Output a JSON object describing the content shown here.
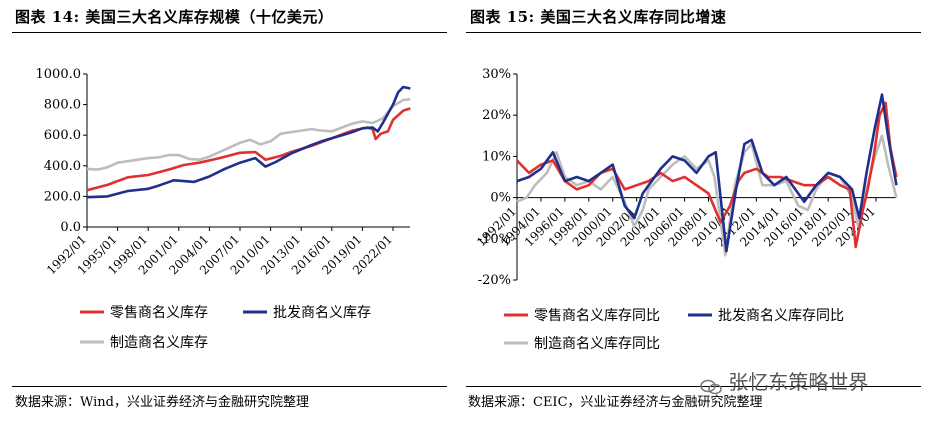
{
  "left_title": "图表 14:  美国三大名义库存规模（十亿美元）",
  "right_title": "图表 15:  美国三大名义库存同比增速",
  "left_source": "数据来源：Wind，兴业证券经济与金融研究院整理",
  "right_source": "数据来源：CEIC，兴业证券经济与金融研究院整理",
  "watermark_text": "张忆东策略世界",
  "watermark_icon": "wechat-icon",
  "chart_data": [
    {
      "type": "line",
      "title": "美国三大名义库存规模（十亿美元）",
      "x_ticks": [
        "1992/01",
        "1995/01",
        "1998/01",
        "2001/01",
        "2004/01",
        "2007/01",
        "2010/01",
        "2013/01",
        "2016/01",
        "2019/01",
        "2022/01"
      ],
      "xlim": [
        "1992/01",
        "2023/09"
      ],
      "y_ticks": [
        "0.0",
        "200.0",
        "400.0",
        "600.0",
        "800.0",
        "1000.0"
      ],
      "ylim": [
        0,
        1000
      ],
      "grid": false,
      "legend_position": "bottom",
      "series": [
        {
          "name": "零售商名义库存",
          "color": "#e03030",
          "points": [
            [
              1992.0,
              240
            ],
            [
              1994.0,
              275
            ],
            [
              1996.0,
              325
            ],
            [
              1998.0,
              340
            ],
            [
              2000.0,
              375
            ],
            [
              2001.5,
              405
            ],
            [
              2003.0,
              420
            ],
            [
              2005.0,
              450
            ],
            [
              2007.0,
              485
            ],
            [
              2008.5,
              490
            ],
            [
              2009.5,
              440
            ],
            [
              2011.0,
              465
            ],
            [
              2012.0,
              490
            ],
            [
              2014.0,
              530
            ],
            [
              2016.0,
              580
            ],
            [
              2018.0,
              630
            ],
            [
              2019.5,
              650
            ],
            [
              2020.0,
              640
            ],
            [
              2020.3,
              575
            ],
            [
              2020.8,
              610
            ],
            [
              2021.5,
              625
            ],
            [
              2022.0,
              700
            ],
            [
              2023.0,
              760
            ],
            [
              2023.7,
              775
            ]
          ]
        },
        {
          "name": "批发商名义库存",
          "color": "#1f2f8c",
          "points": [
            [
              1992.0,
              195
            ],
            [
              1994.0,
              200
            ],
            [
              1996.0,
              235
            ],
            [
              1998.0,
              250
            ],
            [
              1999.0,
              270
            ],
            [
              2000.5,
              305
            ],
            [
              2001.5,
              300
            ],
            [
              2002.5,
              295
            ],
            [
              2004.0,
              330
            ],
            [
              2005.5,
              380
            ],
            [
              2007.0,
              420
            ],
            [
              2008.5,
              450
            ],
            [
              2009.5,
              395
            ],
            [
              2010.5,
              425
            ],
            [
              2012.0,
              480
            ],
            [
              2014.0,
              535
            ],
            [
              2015.0,
              560
            ],
            [
              2016.0,
              580
            ],
            [
              2017.0,
              600
            ],
            [
              2018.0,
              620
            ],
            [
              2019.0,
              645
            ],
            [
              2020.0,
              650
            ],
            [
              2020.5,
              625
            ],
            [
              2021.0,
              680
            ],
            [
              2022.0,
              800
            ],
            [
              2022.5,
              880
            ],
            [
              2023.0,
              915
            ],
            [
              2023.7,
              905
            ]
          ]
        },
        {
          "name": "制造商名义库存",
          "color": "#bdbdbd",
          "points": [
            [
              1992.0,
              380
            ],
            [
              1993.0,
              375
            ],
            [
              1994.0,
              390
            ],
            [
              1995.0,
              420
            ],
            [
              1997.0,
              440
            ],
            [
              1998.0,
              450
            ],
            [
              1999.0,
              455
            ],
            [
              2000.0,
              470
            ],
            [
              2001.0,
              470
            ],
            [
              2002.0,
              445
            ],
            [
              2003.0,
              440
            ],
            [
              2004.0,
              460
            ],
            [
              2005.0,
              490
            ],
            [
              2006.0,
              520
            ],
            [
              2007.0,
              550
            ],
            [
              2008.0,
              570
            ],
            [
              2009.0,
              540
            ],
            [
              2010.0,
              560
            ],
            [
              2011.0,
              610
            ],
            [
              2012.0,
              620
            ],
            [
              2014.0,
              640
            ],
            [
              2015.0,
              630
            ],
            [
              2016.0,
              625
            ],
            [
              2017.0,
              650
            ],
            [
              2018.0,
              675
            ],
            [
              2019.0,
              690
            ],
            [
              2020.0,
              680
            ],
            [
              2021.0,
              710
            ],
            [
              2022.0,
              790
            ],
            [
              2023.0,
              830
            ],
            [
              2023.7,
              835
            ]
          ]
        }
      ]
    },
    {
      "type": "line",
      "title": "美国三大名义库存同比增速",
      "x_ticks": [
        "1992/01",
        "1994/01",
        "1996/01",
        "1998/01",
        "2000/01",
        "2002/01",
        "2004/01",
        "2006/01",
        "2008/01",
        "2010/01",
        "2012/01",
        "2014/01",
        "2016/01",
        "2018/01",
        "2020/01",
        "2022/01"
      ],
      "xlim": [
        "1992/01",
        "2023/09"
      ],
      "y_ticks": [
        "-20%",
        "-10%",
        "0%",
        "10%",
        "20%",
        "30%"
      ],
      "ylim": [
        -20,
        30
      ],
      "grid": false,
      "legend_position": "bottom",
      "series": [
        {
          "name": "零售商名义库存同比",
          "color": "#e03030",
          "points": [
            [
              1992.0,
              9
            ],
            [
              1993.0,
              6
            ],
            [
              1994.0,
              8
            ],
            [
              1995.0,
              9
            ],
            [
              1996.0,
              4
            ],
            [
              1997.0,
              2
            ],
            [
              1998.0,
              3
            ],
            [
              1999.0,
              6
            ],
            [
              2000.0,
              7
            ],
            [
              2001.0,
              2
            ],
            [
              2002.0,
              3
            ],
            [
              2003.0,
              4
            ],
            [
              2004.0,
              6
            ],
            [
              2005.0,
              4
            ],
            [
              2006.0,
              5
            ],
            [
              2007.0,
              3
            ],
            [
              2008.0,
              1
            ],
            [
              2009.0,
              -6
            ],
            [
              2009.8,
              -2
            ],
            [
              2010.5,
              4
            ],
            [
              2011.0,
              6
            ],
            [
              2012.0,
              7
            ],
            [
              2013.0,
              5
            ],
            [
              2014.0,
              5
            ],
            [
              2015.0,
              4
            ],
            [
              2016.0,
              3
            ],
            [
              2017.0,
              3
            ],
            [
              2018.0,
              5
            ],
            [
              2019.0,
              3
            ],
            [
              2019.8,
              2
            ],
            [
              2020.3,
              -12
            ],
            [
              2020.9,
              -3
            ],
            [
              2021.3,
              2
            ],
            [
              2021.8,
              10
            ],
            [
              2022.3,
              20
            ],
            [
              2022.8,
              23
            ],
            [
              2023.2,
              12
            ],
            [
              2023.7,
              5
            ]
          ]
        },
        {
          "name": "批发商名义库存同比",
          "color": "#1f2f8c",
          "points": [
            [
              1992.0,
              4
            ],
            [
              1993.0,
              5
            ],
            [
              1994.0,
              7
            ],
            [
              1995.0,
              11
            ],
            [
              1996.0,
              4
            ],
            [
              1997.0,
              5
            ],
            [
              1998.0,
              4
            ],
            [
              1999.0,
              6
            ],
            [
              2000.0,
              8
            ],
            [
              2001.0,
              -2
            ],
            [
              2001.8,
              -5
            ],
            [
              2002.5,
              1
            ],
            [
              2003.0,
              3
            ],
            [
              2004.0,
              7
            ],
            [
              2005.0,
              10
            ],
            [
              2006.0,
              9
            ],
            [
              2007.0,
              6
            ],
            [
              2008.0,
              10
            ],
            [
              2008.6,
              11
            ],
            [
              2009.5,
              -13
            ],
            [
              2010.3,
              2
            ],
            [
              2011.0,
              13
            ],
            [
              2011.6,
              14
            ],
            [
              2012.5,
              6
            ],
            [
              2013.5,
              3
            ],
            [
              2014.5,
              5
            ],
            [
              2015.5,
              1
            ],
            [
              2016.0,
              -1
            ],
            [
              2017.0,
              3
            ],
            [
              2018.0,
              6
            ],
            [
              2019.0,
              5
            ],
            [
              2020.0,
              2
            ],
            [
              2020.6,
              -5
            ],
            [
              2021.2,
              6
            ],
            [
              2021.9,
              17
            ],
            [
              2022.5,
              25
            ],
            [
              2023.0,
              15
            ],
            [
              2023.7,
              3
            ]
          ]
        },
        {
          "name": "制造商名义库存同比",
          "color": "#bdbdbd",
          "points": [
            [
              1992.0,
              -1
            ],
            [
              1992.8,
              0
            ],
            [
              1993.5,
              3
            ],
            [
              1994.5,
              6
            ],
            [
              1995.3,
              11
            ],
            [
              1996.0,
              5
            ],
            [
              1997.0,
              3
            ],
            [
              1998.0,
              4
            ],
            [
              1999.0,
              2
            ],
            [
              2000.0,
              5
            ],
            [
              2001.0,
              -1
            ],
            [
              2001.8,
              -7
            ],
            [
              2002.5,
              -3
            ],
            [
              2003.0,
              2
            ],
            [
              2004.0,
              5
            ],
            [
              2005.0,
              8
            ],
            [
              2006.0,
              10
            ],
            [
              2007.0,
              7
            ],
            [
              2008.0,
              9
            ],
            [
              2008.5,
              5
            ],
            [
              2009.4,
              -14
            ],
            [
              2010.2,
              3
            ],
            [
              2011.0,
              11
            ],
            [
              2011.6,
              13
            ],
            [
              2012.5,
              3
            ],
            [
              2013.5,
              3
            ],
            [
              2014.5,
              4
            ],
            [
              2015.5,
              -2
            ],
            [
              2016.3,
              -3
            ],
            [
              2017.0,
              2
            ],
            [
              2018.0,
              6
            ],
            [
              2019.0,
              5
            ],
            [
              2020.0,
              0
            ],
            [
              2020.5,
              -7
            ],
            [
              2021.2,
              2
            ],
            [
              2021.9,
              10
            ],
            [
              2022.5,
              15
            ],
            [
              2023.0,
              8
            ],
            [
              2023.7,
              0
            ]
          ]
        }
      ]
    }
  ]
}
